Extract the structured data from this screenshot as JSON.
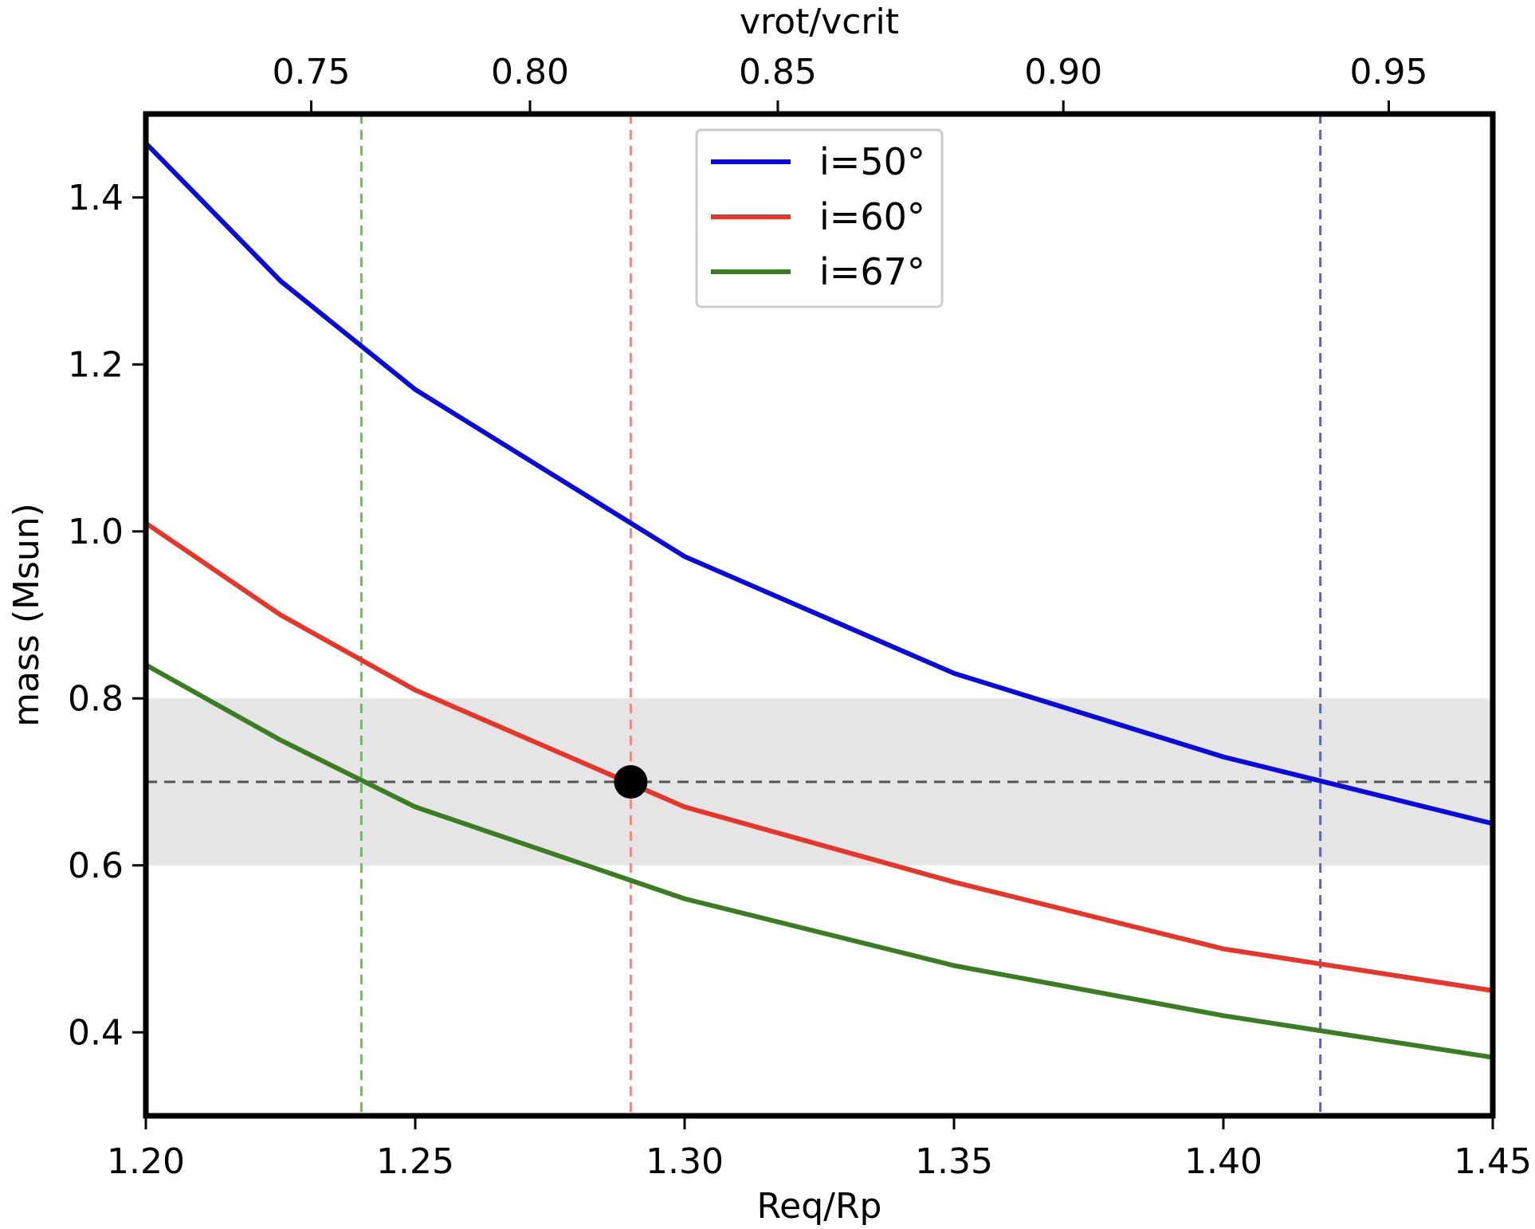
{
  "chart_data": {
    "type": "line",
    "xlabel": "Req/Rp",
    "ylabel": "mass (Msun)",
    "top_xlabel": "vrot/vcrit",
    "xlim": [
      1.2,
      1.45
    ],
    "ylim": [
      0.3,
      1.5
    ],
    "x_ticks": [
      1.2,
      1.25,
      1.3,
      1.35,
      1.4,
      1.45
    ],
    "x_tick_labels": [
      "1.20",
      "1.25",
      "1.30",
      "1.35",
      "1.40",
      "1.45"
    ],
    "y_ticks": [
      0.4,
      0.6,
      0.8,
      1.0,
      1.2,
      1.4
    ],
    "y_tick_labels": [
      "0.4",
      "0.6",
      "0.8",
      "1.0",
      "1.2",
      "1.4"
    ],
    "top_ticks": [
      {
        "label": "0.75",
        "req_rp": 1.2307
      },
      {
        "label": "0.80",
        "req_rp": 1.2713
      },
      {
        "label": "0.85",
        "req_rp": 1.3173
      },
      {
        "label": "0.90",
        "req_rp": 1.3703
      },
      {
        "label": "0.95",
        "req_rp": 1.4307
      }
    ],
    "x": [
      1.2,
      1.225,
      1.25,
      1.3,
      1.35,
      1.4,
      1.45
    ],
    "series": [
      {
        "name": "i=50°",
        "color": "#0a0adc",
        "values": [
          1.465,
          1.3,
          1.17,
          0.97,
          0.83,
          0.73,
          0.65
        ]
      },
      {
        "name": "i=60°",
        "color": "#e8352a",
        "values": [
          1.01,
          0.9,
          0.81,
          0.67,
          0.58,
          0.5,
          0.45
        ]
      },
      {
        "name": "i=67°",
        "color": "#3b7d23",
        "values": [
          0.84,
          0.75,
          0.67,
          0.56,
          0.48,
          0.42,
          0.37
        ]
      }
    ],
    "shaded_band": {
      "ymin": 0.6,
      "ymax": 0.8,
      "color": "#e5e5e5"
    },
    "hline": {
      "y": 0.7,
      "color": "#555555",
      "style": "dashed"
    },
    "vlines": [
      {
        "x": 1.24,
        "color": "#7ab36a",
        "style": "dashed"
      },
      {
        "x": 1.29,
        "color": "#ee8a84",
        "style": "dashed"
      },
      {
        "x": 1.418,
        "color": "#5a5af0",
        "style": "dashed"
      }
    ],
    "marker": {
      "x": 1.29,
      "y": 0.7,
      "color": "#000000"
    },
    "legend": {
      "position": "top-center"
    }
  }
}
